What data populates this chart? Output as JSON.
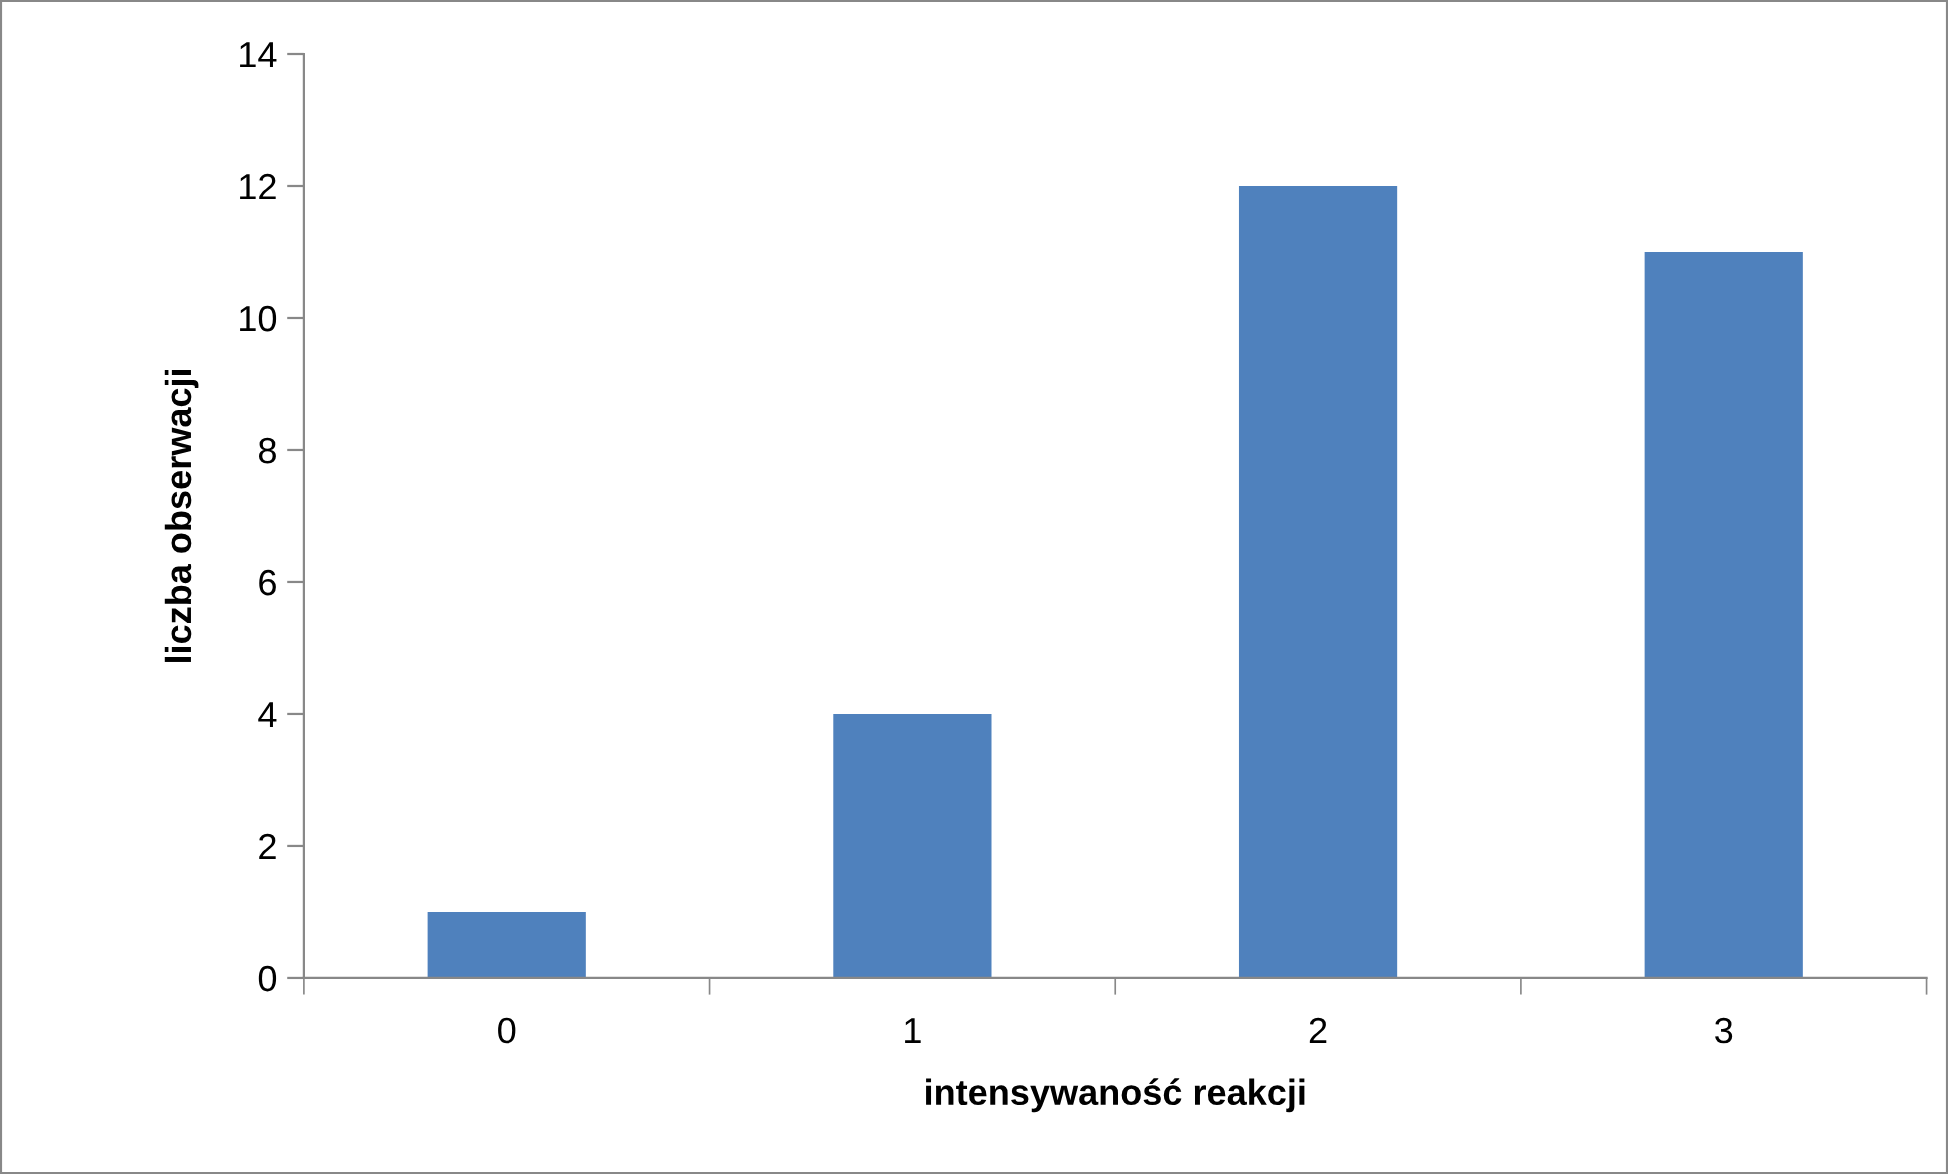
{
  "chart_data": {
    "type": "bar",
    "categories": [
      "0",
      "1",
      "2",
      "3"
    ],
    "values": [
      1,
      4,
      12,
      11
    ],
    "color": "#4f81bd",
    "xlabel": "intensywaność reakcji",
    "ylabel": "liczba obserwacji",
    "ylim": [
      0,
      14
    ],
    "yticks": [
      0,
      2,
      4,
      6,
      8,
      10,
      12,
      14
    ],
    "grid": false,
    "legend": false
  }
}
